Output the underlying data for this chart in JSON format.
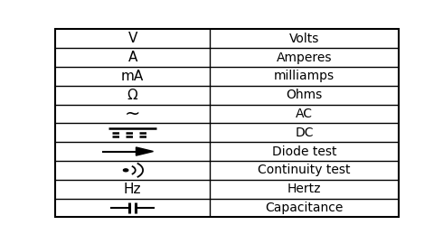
{
  "rows": [
    {
      "symbol": "V",
      "meaning": "Volts"
    },
    {
      "symbol": "A",
      "meaning": "Amperes"
    },
    {
      "symbol": "mA",
      "meaning": "milliamps"
    },
    {
      "symbol": "Ω",
      "meaning": "Ohms"
    },
    {
      "symbol": "~",
      "meaning": "AC"
    },
    {
      "symbol": "dc",
      "meaning": "DC"
    },
    {
      "symbol": "diode",
      "meaning": "Diode test"
    },
    {
      "symbol": "cont",
      "meaning": "Continuity test"
    },
    {
      "symbol": "Hz",
      "meaning": "Hertz"
    },
    {
      "symbol": "cap",
      "meaning": "Capacitance"
    }
  ],
  "col_split": 0.45,
  "bg_color": "#ffffff",
  "text_color": "#000000",
  "line_color": "#000000",
  "font_size": 10,
  "symbol_font_size": 11,
  "fig_width": 4.9,
  "fig_height": 2.7,
  "dpi": 100
}
